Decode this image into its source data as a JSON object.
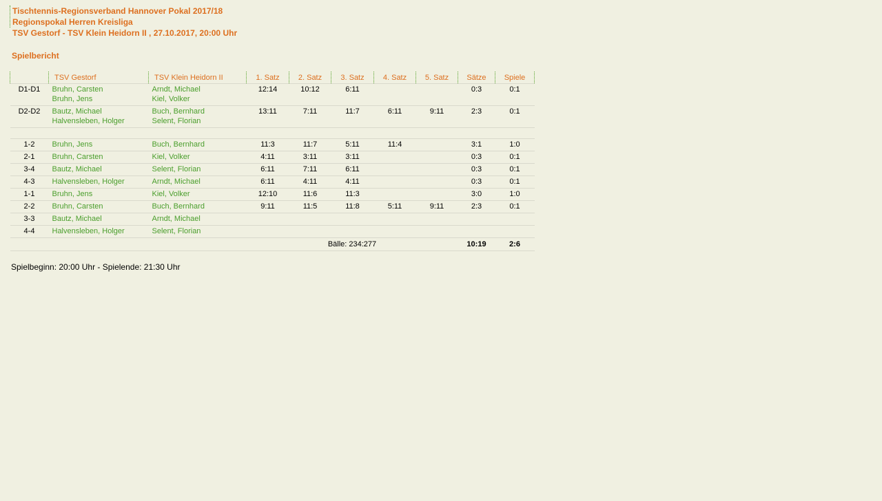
{
  "page": {
    "background_color": "#f0f0e1",
    "accent_orange": "#dd6f1f",
    "player_green": "#4a9e2c",
    "separator_gray": "#d9d9cc"
  },
  "header": {
    "line1": "Tischtennis-Regionsverband Hannover Pokal 2017/18",
    "line2": "Regionspokal Herren Kreisliga",
    "line3": "TSV Gestorf - TSV Klein Heidorn II , 27.10.2017, 20:00 Uhr"
  },
  "section_title": "Spielbericht",
  "match_table": {
    "columns": [
      "",
      "TSV Gestorf",
      "TSV Klein Heidorn II",
      "1. Satz",
      "2. Satz",
      "3. Satz",
      "4. Satz",
      "5. Satz",
      "Sätze",
      "Spiele"
    ],
    "rows": [
      {
        "type": "double",
        "label": "D1-D1",
        "home": [
          "Bruhn, Carsten",
          "Bruhn, Jens"
        ],
        "away": [
          "Arndt, Michael",
          "Kiel, Volker"
        ],
        "sets": [
          "12:14",
          "10:12",
          "6:11",
          "",
          ""
        ],
        "saetze": "0:3",
        "spiele": "0:1"
      },
      {
        "type": "double",
        "label": "D2-D2",
        "home": [
          "Bautz, Michael",
          "Halvensleben, Holger"
        ],
        "away": [
          "Buch, Bernhard",
          "Selent, Florian"
        ],
        "sets": [
          "13:11",
          "7:11",
          "11:7",
          "6:11",
          "9:11"
        ],
        "saetze": "2:3",
        "spiele": "0:1"
      },
      {
        "type": "spacer"
      },
      {
        "type": "single",
        "label": "1-2",
        "home": [
          "Bruhn, Jens"
        ],
        "away": [
          "Buch, Bernhard"
        ],
        "sets": [
          "11:3",
          "11:7",
          "5:11",
          "11:4",
          ""
        ],
        "saetze": "3:1",
        "spiele": "1:0"
      },
      {
        "type": "single",
        "label": "2-1",
        "home": [
          "Bruhn, Carsten"
        ],
        "away": [
          "Kiel, Volker"
        ],
        "sets": [
          "4:11",
          "3:11",
          "3:11",
          "",
          ""
        ],
        "saetze": "0:3",
        "spiele": "0:1"
      },
      {
        "type": "single",
        "label": "3-4",
        "home": [
          "Bautz, Michael"
        ],
        "away": [
          "Selent, Florian"
        ],
        "sets": [
          "6:11",
          "7:11",
          "6:11",
          "",
          ""
        ],
        "saetze": "0:3",
        "spiele": "0:1"
      },
      {
        "type": "single",
        "label": "4-3",
        "home": [
          "Halvensleben, Holger"
        ],
        "away": [
          "Arndt, Michael"
        ],
        "sets": [
          "6:11",
          "4:11",
          "4:11",
          "",
          ""
        ],
        "saetze": "0:3",
        "spiele": "0:1"
      },
      {
        "type": "single",
        "label": "1-1",
        "home": [
          "Bruhn, Jens"
        ],
        "away": [
          "Kiel, Volker"
        ],
        "sets": [
          "12:10",
          "11:6",
          "11:3",
          "",
          ""
        ],
        "saetze": "3:0",
        "spiele": "1:0"
      },
      {
        "type": "single",
        "label": "2-2",
        "home": [
          "Bruhn, Carsten"
        ],
        "away": [
          "Buch, Bernhard"
        ],
        "sets": [
          "9:11",
          "11:5",
          "11:8",
          "5:11",
          "9:11"
        ],
        "saetze": "2:3",
        "spiele": "0:1"
      },
      {
        "type": "single",
        "label": "3-3",
        "home": [
          "Bautz, Michael"
        ],
        "away": [
          "Arndt, Michael"
        ],
        "sets": [
          "",
          "",
          "",
          "",
          ""
        ],
        "saetze": "",
        "spiele": ""
      },
      {
        "type": "single",
        "label": "4-4",
        "home": [
          "Halvensleben, Holger"
        ],
        "away": [
          "Selent, Florian"
        ],
        "sets": [
          "",
          "",
          "",
          "",
          ""
        ],
        "saetze": "",
        "spiele": ""
      }
    ],
    "footer": {
      "balls": "Bälle: 234:277",
      "saetze_total": "10:19",
      "spiele_total": "2:6"
    }
  },
  "footer_note": "Spielbeginn: 20:00 Uhr - Spielende: 21:30 Uhr"
}
